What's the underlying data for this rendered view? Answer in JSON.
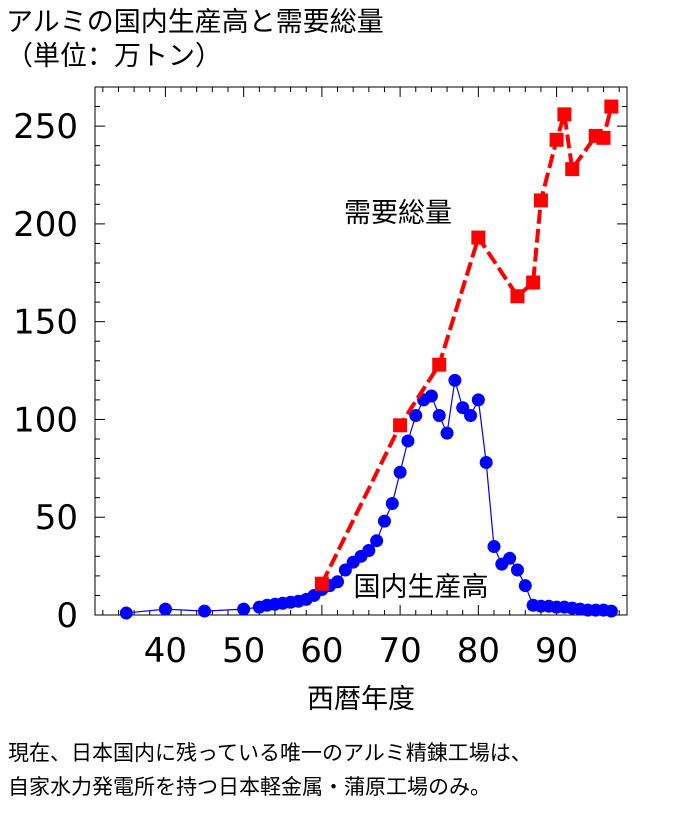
{
  "title": {
    "line1": "アルミの国内生産高と需要総量",
    "line2": "（単位：万トン）"
  },
  "caption": {
    "line1": "現在、日本国内に残っている唯一のアルミ精錬工場は、",
    "line2": "自家水力発電所を持つ日本軽金属・蒲原工場のみ。"
  },
  "chart_data": {
    "type": "line",
    "xlabel": "西暦年度",
    "ylabel": "",
    "xlim": [
      31,
      99
    ],
    "ylim": [
      0,
      270
    ],
    "x_ticks": [
      40,
      50,
      60,
      70,
      80,
      90
    ],
    "y_ticks": [
      0,
      50,
      100,
      150,
      200,
      250
    ],
    "grid": false,
    "series": [
      {
        "name": "需要総量",
        "color": "#ff0000",
        "marker": "square",
        "line_style": "dashed",
        "points": [
          [
            60,
            16
          ],
          [
            70,
            97
          ],
          [
            75,
            128
          ],
          [
            80,
            193
          ],
          [
            85,
            163
          ],
          [
            87,
            170
          ],
          [
            88,
            212
          ],
          [
            90,
            243
          ],
          [
            91,
            256
          ],
          [
            92,
            228
          ],
          [
            95,
            245
          ],
          [
            96,
            244
          ],
          [
            97,
            260
          ]
        ]
      },
      {
        "name": "国内生産高",
        "color": "#0000ff",
        "marker": "circle",
        "line_style": "solid",
        "points": [
          [
            35,
            1
          ],
          [
            40,
            3
          ],
          [
            45,
            2
          ],
          [
            50,
            3
          ],
          [
            52,
            4
          ],
          [
            53,
            5
          ],
          [
            54,
            5.5
          ],
          [
            55,
            6
          ],
          [
            56,
            6.5
          ],
          [
            57,
            7
          ],
          [
            58,
            8
          ],
          [
            59,
            10
          ],
          [
            60,
            13
          ],
          [
            61,
            15
          ],
          [
            62,
            17
          ],
          [
            63,
            23
          ],
          [
            64,
            27
          ],
          [
            65,
            30
          ],
          [
            66,
            33
          ],
          [
            67,
            38
          ],
          [
            68,
            48
          ],
          [
            69,
            57
          ],
          [
            70,
            73
          ],
          [
            71,
            89
          ],
          [
            72,
            102
          ],
          [
            73,
            110
          ],
          [
            74,
            112
          ],
          [
            75,
            102
          ],
          [
            76,
            93
          ],
          [
            77,
            120
          ],
          [
            78,
            106
          ],
          [
            79,
            102
          ],
          [
            80,
            110
          ],
          [
            81,
            78
          ],
          [
            82,
            35
          ],
          [
            83,
            26
          ],
          [
            84,
            29
          ],
          [
            85,
            23
          ],
          [
            86,
            15
          ],
          [
            87,
            5
          ],
          [
            88,
            4.5
          ],
          [
            89,
            4.5
          ],
          [
            90,
            4
          ],
          [
            91,
            4
          ],
          [
            92,
            3.5
          ],
          [
            93,
            3
          ],
          [
            94,
            2.5
          ],
          [
            95,
            2.5
          ],
          [
            96,
            2.5
          ],
          [
            97,
            2
          ]
        ]
      }
    ]
  }
}
